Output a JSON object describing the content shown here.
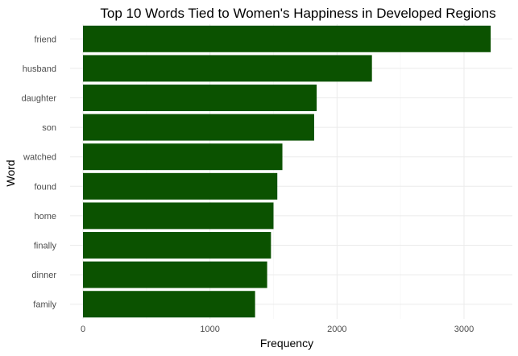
{
  "chart_data": {
    "type": "bar",
    "orientation": "horizontal",
    "title": "Top 10 Words Tied to Women's Happiness in Developed Regions",
    "xlabel": "Frequency",
    "ylabel": "Word",
    "categories": [
      "friend",
      "husband",
      "daughter",
      "son",
      "watched",
      "found",
      "home",
      "finally",
      "dinner",
      "family"
    ],
    "values": [
      3210,
      2275,
      1840,
      1820,
      1570,
      1530,
      1500,
      1480,
      1450,
      1355
    ],
    "xlim": [
      0,
      3300
    ],
    "xticks": [
      0,
      1000,
      2000,
      3000
    ],
    "xtick_labels": [
      "0",
      "1000",
      "2000",
      "3000"
    ],
    "grid": true,
    "bar_color": "#0b5200",
    "grid_color": "#ebebeb"
  }
}
